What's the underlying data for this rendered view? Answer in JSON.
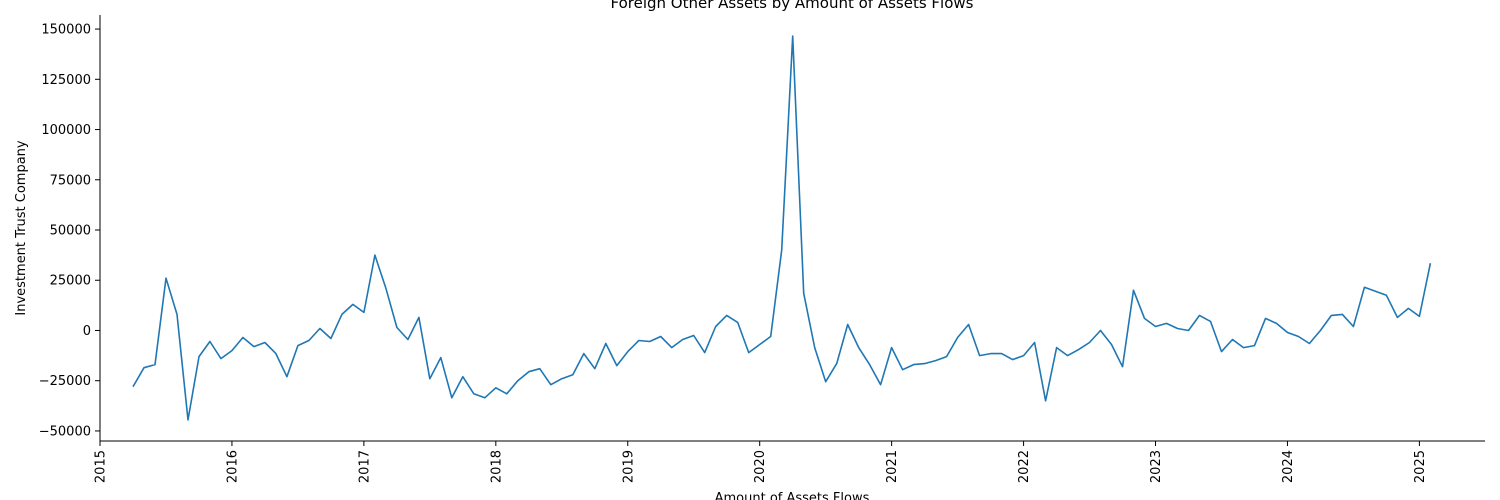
{
  "chart_data": {
    "type": "line",
    "title": "Foreign Other Assets by Amount of Assets Flows",
    "xlabel": "Amount of Assets Flows",
    "ylabel": "Investment Trust Company",
    "xlim": [
      "2015-01-01",
      "2025-06-30"
    ],
    "ylim": [
      -55000,
      157000
    ],
    "xticks": [
      "2015",
      "2016",
      "2017",
      "2018",
      "2019",
      "2020",
      "2021",
      "2022",
      "2023",
      "2024",
      "2025"
    ],
    "yticks": [
      -50000,
      -25000,
      0,
      25000,
      50000,
      75000,
      100000,
      125000,
      150000
    ],
    "grid": false,
    "color": "#1f77b4",
    "series": [
      {
        "x": [
          "2015-04",
          "2015-05",
          "2015-06",
          "2015-07",
          "2015-08",
          "2015-09",
          "2015-10",
          "2015-11",
          "2015-12",
          "2016-01",
          "2016-02",
          "2016-03",
          "2016-04",
          "2016-05",
          "2016-06",
          "2016-07",
          "2016-08",
          "2016-09",
          "2016-10",
          "2016-11",
          "2016-12",
          "2017-01",
          "2017-02",
          "2017-03",
          "2017-04",
          "2017-05",
          "2017-06",
          "2017-07",
          "2017-08",
          "2017-09",
          "2017-10",
          "2017-11",
          "2017-12",
          "2018-01",
          "2018-02",
          "2018-03",
          "2018-04",
          "2018-05",
          "2018-06",
          "2018-07",
          "2018-08",
          "2018-09",
          "2018-10",
          "2018-11",
          "2018-12",
          "2019-01",
          "2019-02",
          "2019-03",
          "2019-04",
          "2019-05",
          "2019-06",
          "2019-07",
          "2019-08",
          "2019-09",
          "2019-10",
          "2019-11",
          "2019-12",
          "2020-01",
          "2020-02",
          "2020-03",
          "2020-04",
          "2020-05",
          "2020-06",
          "2020-07",
          "2020-08",
          "2020-09",
          "2020-10",
          "2020-11",
          "2020-12",
          "2021-01",
          "2021-02",
          "2021-03",
          "2021-04",
          "2021-05",
          "2021-06",
          "2021-07",
          "2021-08",
          "2021-09",
          "2021-10",
          "2021-11",
          "2021-12",
          "2022-01",
          "2022-02",
          "2022-03",
          "2022-04",
          "2022-05",
          "2022-06",
          "2022-07",
          "2022-08",
          "2022-09",
          "2022-10",
          "2022-11",
          "2022-12",
          "2023-01",
          "2023-02",
          "2023-03",
          "2023-04",
          "2023-05",
          "2023-06",
          "2023-07",
          "2023-08",
          "2023-09",
          "2023-10",
          "2023-11",
          "2023-12",
          "2024-01",
          "2024-02",
          "2024-03",
          "2024-04",
          "2024-05",
          "2024-06",
          "2024-07",
          "2024-08",
          "2024-09",
          "2024-10",
          "2024-11",
          "2024-12",
          "2025-01",
          "2025-02"
        ],
        "y": [
          -28000,
          -18500,
          -17000,
          26000,
          8000,
          -44500,
          -13000,
          -5500,
          -14000,
          -10000,
          -3500,
          -8000,
          -6000,
          -11500,
          -23000,
          -7500,
          -5000,
          1000,
          -4000,
          8000,
          13000,
          9000,
          37500,
          21000,
          1500,
          -4500,
          6500,
          -24000,
          -13500,
          -33500,
          -23000,
          -31500,
          -33500,
          -28500,
          -31500,
          -25000,
          -20500,
          -19000,
          -27000,
          -24000,
          -22000,
          -11500,
          -19000,
          -6500,
          -17500,
          -10500,
          -5000,
          -5500,
          -3000,
          -8500,
          -4500,
          -2500,
          -11000,
          2000,
          7500,
          4000,
          -11000,
          -7000,
          -3000,
          40000,
          146500,
          18500,
          -8500,
          -25500,
          -16500,
          3000,
          -8500,
          -17000,
          -27000,
          -8500,
          -19500,
          -17000,
          -16500,
          -15000,
          -13000,
          -3500,
          3000,
          -12500,
          -11500,
          -11500,
          -14500,
          -12500,
          -6000,
          -35000,
          -8500,
          -12500,
          -9500,
          -6000,
          0,
          -7000,
          -18000,
          20000,
          6000,
          2000,
          3500,
          1000,
          0,
          7500,
          4500,
          -10500,
          -4500,
          -8500,
          -7500,
          6000,
          3500,
          -1000,
          -3000,
          -6500,
          0,
          7500,
          8000,
          2000,
          21500,
          19500,
          17500,
          6500,
          11000,
          7000,
          33500
        ]
      }
    ]
  }
}
